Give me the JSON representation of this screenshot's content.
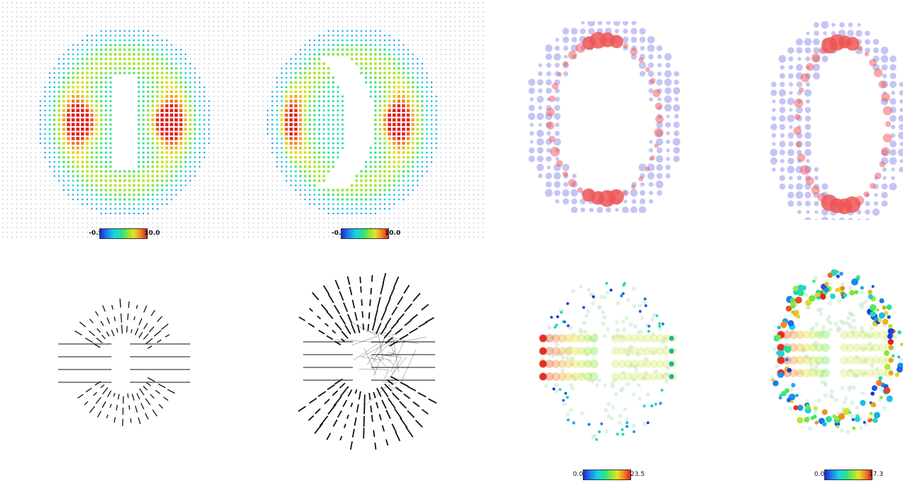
{
  "colorbars": {
    "top_left": {
      "min": "-0.5",
      "max": "10.0"
    },
    "top_mid": {
      "min": "-0.5",
      "max": "10.0"
    },
    "bottom_mid": {
      "min": "0.0",
      "max": "23.5"
    },
    "bottom_right": {
      "min": "0.0",
      "max": "17.3"
    }
  },
  "colors": {
    "background": "#ffffff",
    "grid_dot": "#9aa8b4",
    "particle_red": "#ee5555",
    "particle_blue": "#7f7fe6",
    "fracture_line": "#111111"
  },
  "panels": {
    "heatmap_rect": "colour-coded field dot grid around rectangular void",
    "heatmap_crescent": "colour-coded field dot grid around crescent void",
    "particles_rect": "red and blue particle cloud around elliptical void",
    "particles_crescent": "red and blue particle cloud around elliptical void with offset",
    "cracks_rect": "black fracture segments, symmetric",
    "cracks_crescent": "black fracture segments, asymmetric",
    "scatter_rect": "colour-scaled points with horizontal streaks",
    "scatter_crescent": "colour-scaled points with horizontal streaks, asymmetric"
  }
}
